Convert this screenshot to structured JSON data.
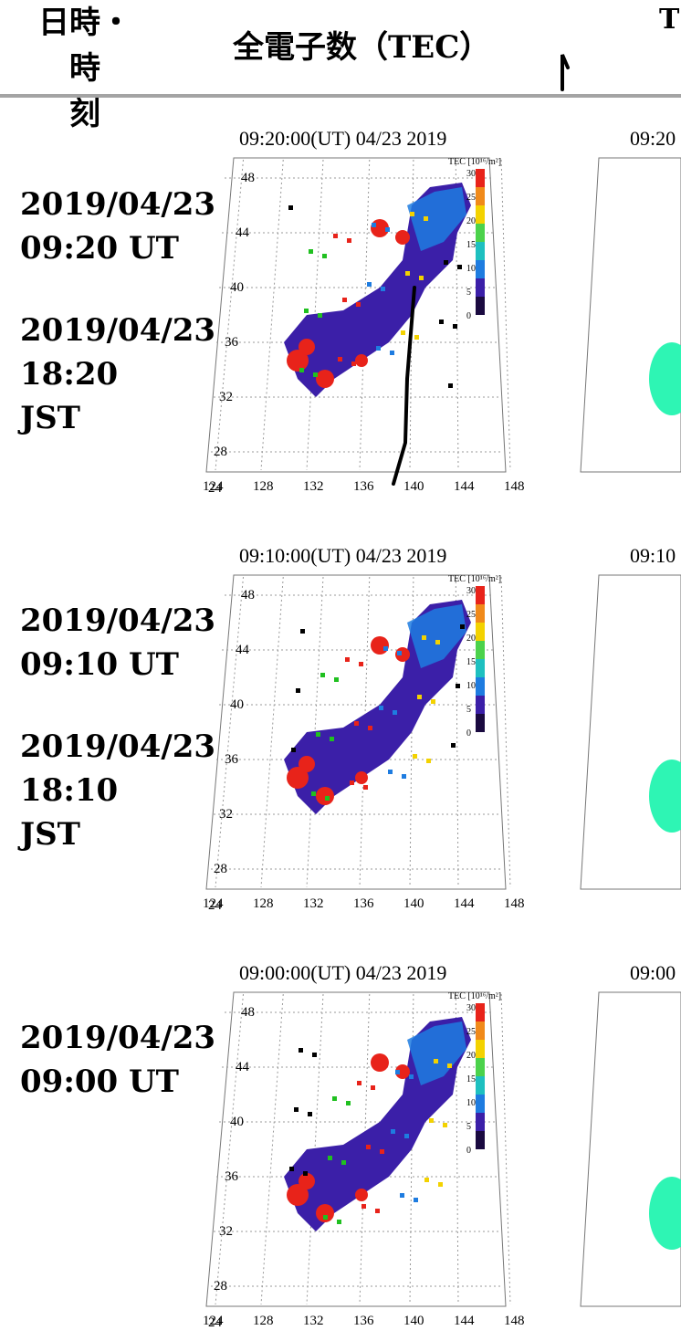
{
  "header": {
    "time_col_line1": "日時・時",
    "time_col_line2": "刻",
    "tec_col": "全電子数（TEC）",
    "right_col_fragment": "T"
  },
  "colorbar": {
    "label": "TEC [10¹⁶/m²]",
    "ticks": [
      "30",
      "25",
      "20",
      "15",
      "10",
      "5",
      "0"
    ]
  },
  "map_axes": {
    "lat_labels": [
      "48",
      "44",
      "40",
      "36",
      "32",
      "28",
      "24"
    ],
    "lon_labels": [
      "124",
      "128",
      "132",
      "136",
      "140",
      "144",
      "148"
    ]
  },
  "rows": [
    {
      "ut_date": "2019/04/23",
      "ut_time": "09:20 UT",
      "jst_date": "2019/04/23",
      "jst_time": "18:20",
      "jst_tz": "JST",
      "map_title": "09:20:00(UT)  04/23 2019",
      "right_title": "09:20"
    },
    {
      "ut_date": "2019/04/23",
      "ut_time": "09:10 UT",
      "jst_date": "2019/04/23",
      "jst_time": "18:10",
      "jst_tz": "JST",
      "map_title": "09:10:00(UT)  04/23 2019",
      "right_title": "09:10"
    },
    {
      "ut_date": "2019/04/23",
      "ut_time": "09:00 UT",
      "map_title": "09:00:00(UT)  04/23 2019",
      "right_title": "09:00"
    }
  ],
  "colors": {
    "rule": "#a4a4a4",
    "tec_low": "#3b1fa8",
    "tec_mid": "#1e7ce0",
    "tec_high": "#e8231a",
    "right_panel_fill": "#2ef5b4"
  }
}
